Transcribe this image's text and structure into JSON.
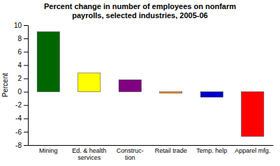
{
  "chart_data": {
    "type": "bar",
    "title": "Percent change in number of employees on nonfarm\npayrolls, selected industries, 2005-06",
    "categories": [
      "Mining",
      "Ed. & health\nservices",
      "Construc-\ntion",
      "Retail trade",
      "Temp. help",
      "Apparel mfg."
    ],
    "values": [
      9.0,
      2.8,
      1.8,
      -0.2,
      -0.8,
      -6.7
    ],
    "colors": [
      "#006600",
      "#FFFF00",
      "#800080",
      "#FF8C00",
      "#0000CC",
      "#FF0000"
    ],
    "ylabel": "Percent",
    "ylim": [
      -8,
      10
    ],
    "yticks": [
      -8,
      -6,
      -4,
      -2,
      0,
      2,
      4,
      6,
      8,
      10
    ],
    "grid": false
  }
}
